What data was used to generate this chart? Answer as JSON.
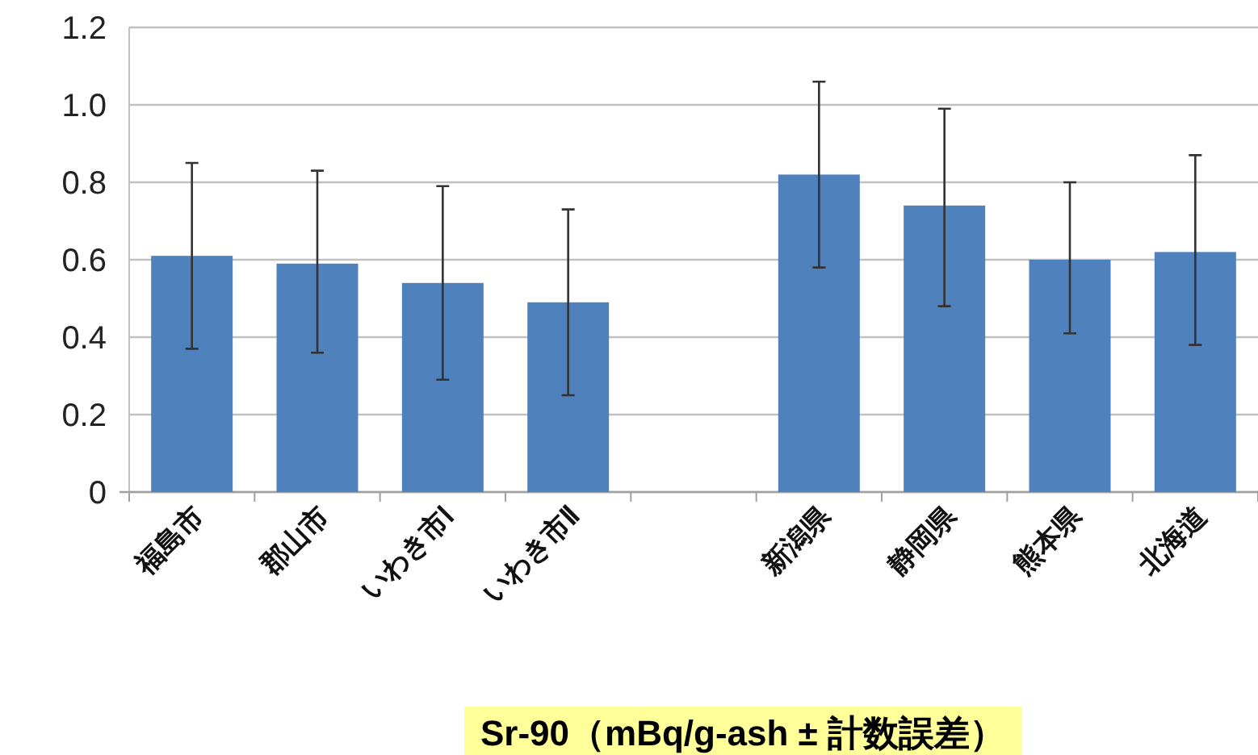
{
  "chart_data": {
    "type": "bar",
    "categories": [
      "福島市",
      "郡山市",
      "いわき市Ⅰ",
      "いわき市Ⅱ",
      null,
      "新潟県",
      "静岡県",
      "熊本県",
      "北海道"
    ],
    "values": [
      0.61,
      0.59,
      0.54,
      0.49,
      null,
      0.82,
      0.74,
      0.6,
      0.62
    ],
    "errors": [
      [
        0.37,
        0.85
      ],
      [
        0.36,
        0.83
      ],
      [
        0.29,
        0.79
      ],
      [
        0.25,
        0.73
      ],
      null,
      [
        0.58,
        1.06
      ],
      [
        0.48,
        0.99
      ],
      [
        0.41,
        0.8
      ],
      [
        0.38,
        0.87
      ]
    ],
    "color": "#4f81bd",
    "xlabel": "Sr-90（mBq/g-ash ± 計数誤差）",
    "ylim": [
      0,
      1.2
    ],
    "yticks": [
      0,
      0.2,
      0.4,
      0.6,
      0.8,
      {
        "value": 1.0,
        "label": "1.0"
      },
      1.2
    ],
    "grid": "y"
  }
}
